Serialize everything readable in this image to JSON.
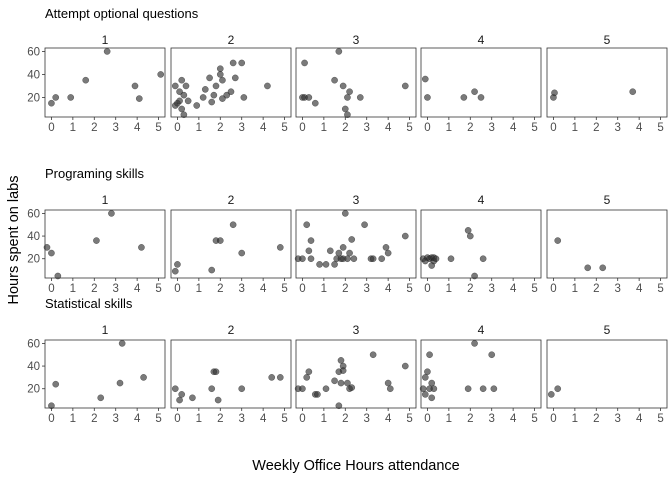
{
  "chart_data": {
    "type": "scatter",
    "xlabel": "Weekly Office Hours attendance",
    "ylabel": "Hours spent on labs",
    "xlim": [
      -0.3,
      5.3
    ],
    "ylim": [
      3,
      63
    ],
    "xticks": [
      "0",
      "1",
      "2",
      "3",
      "4",
      "5"
    ],
    "yticks": [
      "20",
      "40",
      "60"
    ],
    "columns": [
      "1",
      "2",
      "3",
      "4",
      "5"
    ],
    "rows": [
      {
        "title": "Attempt optional questions",
        "panels": [
          {
            "group": "1",
            "points": [
              [
                0,
                15
              ],
              [
                0.2,
                20
              ],
              [
                0.9,
                20
              ],
              [
                1.6,
                35
              ],
              [
                2.6,
                60
              ],
              [
                3.9,
                30
              ],
              [
                4.1,
                19
              ],
              [
                5.1,
                40
              ]
            ]
          },
          {
            "group": "2",
            "points": [
              [
                -0.1,
                13
              ],
              [
                0,
                15
              ],
              [
                0.1,
                17
              ],
              [
                0.2,
                10
              ],
              [
                0.1,
                25
              ],
              [
                0.2,
                35
              ],
              [
                0.3,
                22
              ],
              [
                0.3,
                5
              ],
              [
                0.4,
                30
              ],
              [
                0.5,
                17
              ],
              [
                -0.1,
                30
              ],
              [
                0.9,
                13
              ],
              [
                1.2,
                20
              ],
              [
                1.3,
                27
              ],
              [
                1.5,
                37
              ],
              [
                1.6,
                16
              ],
              [
                1.7,
                22
              ],
              [
                1.8,
                30
              ],
              [
                2.0,
                40
              ],
              [
                2.0,
                45
              ],
              [
                2.1,
                35
              ],
              [
                2.1,
                19
              ],
              [
                2.3,
                22
              ],
              [
                2.5,
                25
              ],
              [
                2.6,
                50
              ],
              [
                2.7,
                37
              ],
              [
                3.0,
                50
              ],
              [
                3.1,
                20
              ],
              [
                4.2,
                30
              ]
            ]
          },
          {
            "group": "3",
            "points": [
              [
                0,
                20
              ],
              [
                0.1,
                20
              ],
              [
                0.1,
                50
              ],
              [
                0.3,
                20
              ],
              [
                0.6,
                15
              ],
              [
                1.5,
                35
              ],
              [
                1.7,
                60
              ],
              [
                1.9,
                30
              ],
              [
                2.0,
                10
              ],
              [
                2.1,
                20
              ],
              [
                2.1,
                5
              ],
              [
                2.2,
                25
              ],
              [
                2.7,
                20
              ],
              [
                4.8,
                30
              ]
            ]
          },
          {
            "group": "4",
            "points": [
              [
                -0.1,
                36
              ],
              [
                0,
                20
              ],
              [
                1.7,
                20
              ],
              [
                2.2,
                25
              ],
              [
                2.5,
                20
              ]
            ]
          },
          {
            "group": "5",
            "points": [
              [
                0,
                20
              ],
              [
                0.05,
                24
              ],
              [
                3.7,
                25
              ]
            ]
          }
        ]
      },
      {
        "title": "Programing skills",
        "panels": [
          {
            "group": "1",
            "points": [
              [
                -0.3,
                30
              ],
              [
                0,
                25
              ],
              [
                0.3,
                4
              ],
              [
                2.1,
                36
              ],
              [
                2.8,
                60
              ],
              [
                4.2,
                30
              ]
            ]
          },
          {
            "group": "2",
            "points": [
              [
                -0.1,
                9
              ],
              [
                0,
                15
              ],
              [
                1.6,
                10
              ],
              [
                1.8,
                36
              ],
              [
                2.0,
                36
              ],
              [
                2.6,
                50
              ],
              [
                3.0,
                25
              ],
              [
                4.8,
                30
              ]
            ]
          },
          {
            "group": "3",
            "points": [
              [
                -0.2,
                20
              ],
              [
                0,
                20
              ],
              [
                0.2,
                50
              ],
              [
                0.3,
                27
              ],
              [
                0.4,
                20
              ],
              [
                0.4,
                36
              ],
              [
                0.8,
                15
              ],
              [
                1.1,
                15
              ],
              [
                1.3,
                27
              ],
              [
                1.5,
                15
              ],
              [
                1.6,
                20
              ],
              [
                1.7,
                25
              ],
              [
                1.8,
                20
              ],
              [
                1.9,
                20
              ],
              [
                1.9,
                30
              ],
              [
                2.0,
                60
              ],
              [
                2.1,
                20
              ],
              [
                2.2,
                25
              ],
              [
                2.3,
                37
              ],
              [
                2.4,
                20
              ],
              [
                2.9,
                50
              ],
              [
                3.2,
                20
              ],
              [
                3.3,
                20
              ],
              [
                3.7,
                20
              ],
              [
                3.9,
                30
              ],
              [
                4.0,
                25
              ],
              [
                4.8,
                40
              ]
            ]
          },
          {
            "group": "4",
            "points": [
              [
                -0.2,
                20
              ],
              [
                -0.1,
                18
              ],
              [
                0,
                21
              ],
              [
                0.1,
                20
              ],
              [
                0.2,
                14
              ],
              [
                0.2,
                21
              ],
              [
                0.3,
                18
              ],
              [
                0.3,
                21
              ],
              [
                0.4,
                20
              ],
              [
                1.1,
                20
              ],
              [
                1.9,
                45
              ],
              [
                2.0,
                40
              ],
              [
                2.2,
                4
              ],
              [
                2.6,
                20
              ]
            ]
          },
          {
            "group": "5",
            "points": [
              [
                0.2,
                36
              ],
              [
                1.6,
                12
              ],
              [
                2.3,
                12
              ]
            ]
          }
        ]
      },
      {
        "title": "Statistical skills",
        "panels": [
          {
            "group": "1",
            "points": [
              [
                0,
                5
              ],
              [
                0.2,
                24
              ],
              [
                2.3,
                12
              ],
              [
                3.2,
                25
              ],
              [
                3.3,
                60
              ],
              [
                4.3,
                30
              ]
            ]
          },
          {
            "group": "2",
            "points": [
              [
                -0.1,
                20
              ],
              [
                0.1,
                10
              ],
              [
                0.2,
                15
              ],
              [
                0.7,
                12
              ],
              [
                1.6,
                20
              ],
              [
                1.7,
                35
              ],
              [
                1.8,
                35
              ],
              [
                1.9,
                10
              ],
              [
                3.0,
                20
              ],
              [
                4.4,
                30
              ],
              [
                4.8,
                30
              ]
            ]
          },
          {
            "group": "3",
            "points": [
              [
                -0.2,
                20
              ],
              [
                0,
                20
              ],
              [
                0.2,
                30
              ],
              [
                0.3,
                35
              ],
              [
                0.6,
                15
              ],
              [
                0.7,
                15
              ],
              [
                1.1,
                20
              ],
              [
                1.5,
                27
              ],
              [
                1.7,
                35
              ],
              [
                1.7,
                5
              ],
              [
                1.8,
                45
              ],
              [
                1.8,
                25
              ],
              [
                1.9,
                40
              ],
              [
                1.9,
                36
              ],
              [
                2.1,
                25
              ],
              [
                2.2,
                20
              ],
              [
                2.3,
                21
              ],
              [
                3.3,
                50
              ],
              [
                4.0,
                25
              ],
              [
                4.1,
                20
              ],
              [
                4.8,
                40
              ]
            ]
          },
          {
            "group": "4",
            "points": [
              [
                -0.2,
                20
              ],
              [
                -0.1,
                30
              ],
              [
                -0.1,
                15
              ],
              [
                0,
                35
              ],
              [
                0.1,
                50
              ],
              [
                0.1,
                20
              ],
              [
                0.2,
                25
              ],
              [
                0.2,
                12
              ],
              [
                0.3,
                20
              ],
              [
                1.9,
                20
              ],
              [
                2.2,
                60
              ],
              [
                2.6,
                20
              ],
              [
                3.0,
                50
              ],
              [
                3.1,
                20
              ]
            ]
          },
          {
            "group": "5",
            "points": [
              [
                -0.1,
                15
              ],
              [
                0.2,
                20
              ]
            ]
          }
        ]
      }
    ]
  }
}
